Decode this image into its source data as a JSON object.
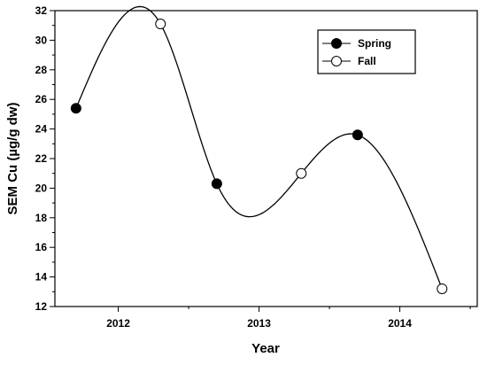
{
  "chart_data": {
    "type": "scatter",
    "title": "",
    "xlabel": "Year",
    "ylabel": "SEM Cu (µg/g dw)",
    "xlim": [
      2011.55,
      2014.55
    ],
    "ylim": [
      12,
      32
    ],
    "x_ticks": [
      2012,
      2013,
      2014
    ],
    "x_tick_labels": [
      "2012",
      "2013",
      "2014"
    ],
    "y_ticks": [
      12,
      14,
      16,
      18,
      20,
      22,
      24,
      26,
      28,
      30,
      32
    ],
    "y_tick_labels": [
      "12",
      "14",
      "16",
      "18",
      "20",
      "22",
      "24",
      "26",
      "28",
      "30",
      "32"
    ],
    "grid": false,
    "legend_position": "top-right",
    "smooth_line": true,
    "series": [
      {
        "name": "Spring",
        "marker": "filled-circle",
        "x": [
          2011.7,
          2012.7,
          2013.7
        ],
        "y": [
          25.4,
          20.3,
          23.6
        ]
      },
      {
        "name": "Fall",
        "marker": "open-circle",
        "x": [
          2012.3,
          2013.3,
          2014.3
        ],
        "y": [
          31.1,
          21.0,
          13.2
        ]
      }
    ],
    "colors": {
      "line": "#000000",
      "marker_filled": "#000000",
      "marker_open": "#ffffff"
    }
  }
}
